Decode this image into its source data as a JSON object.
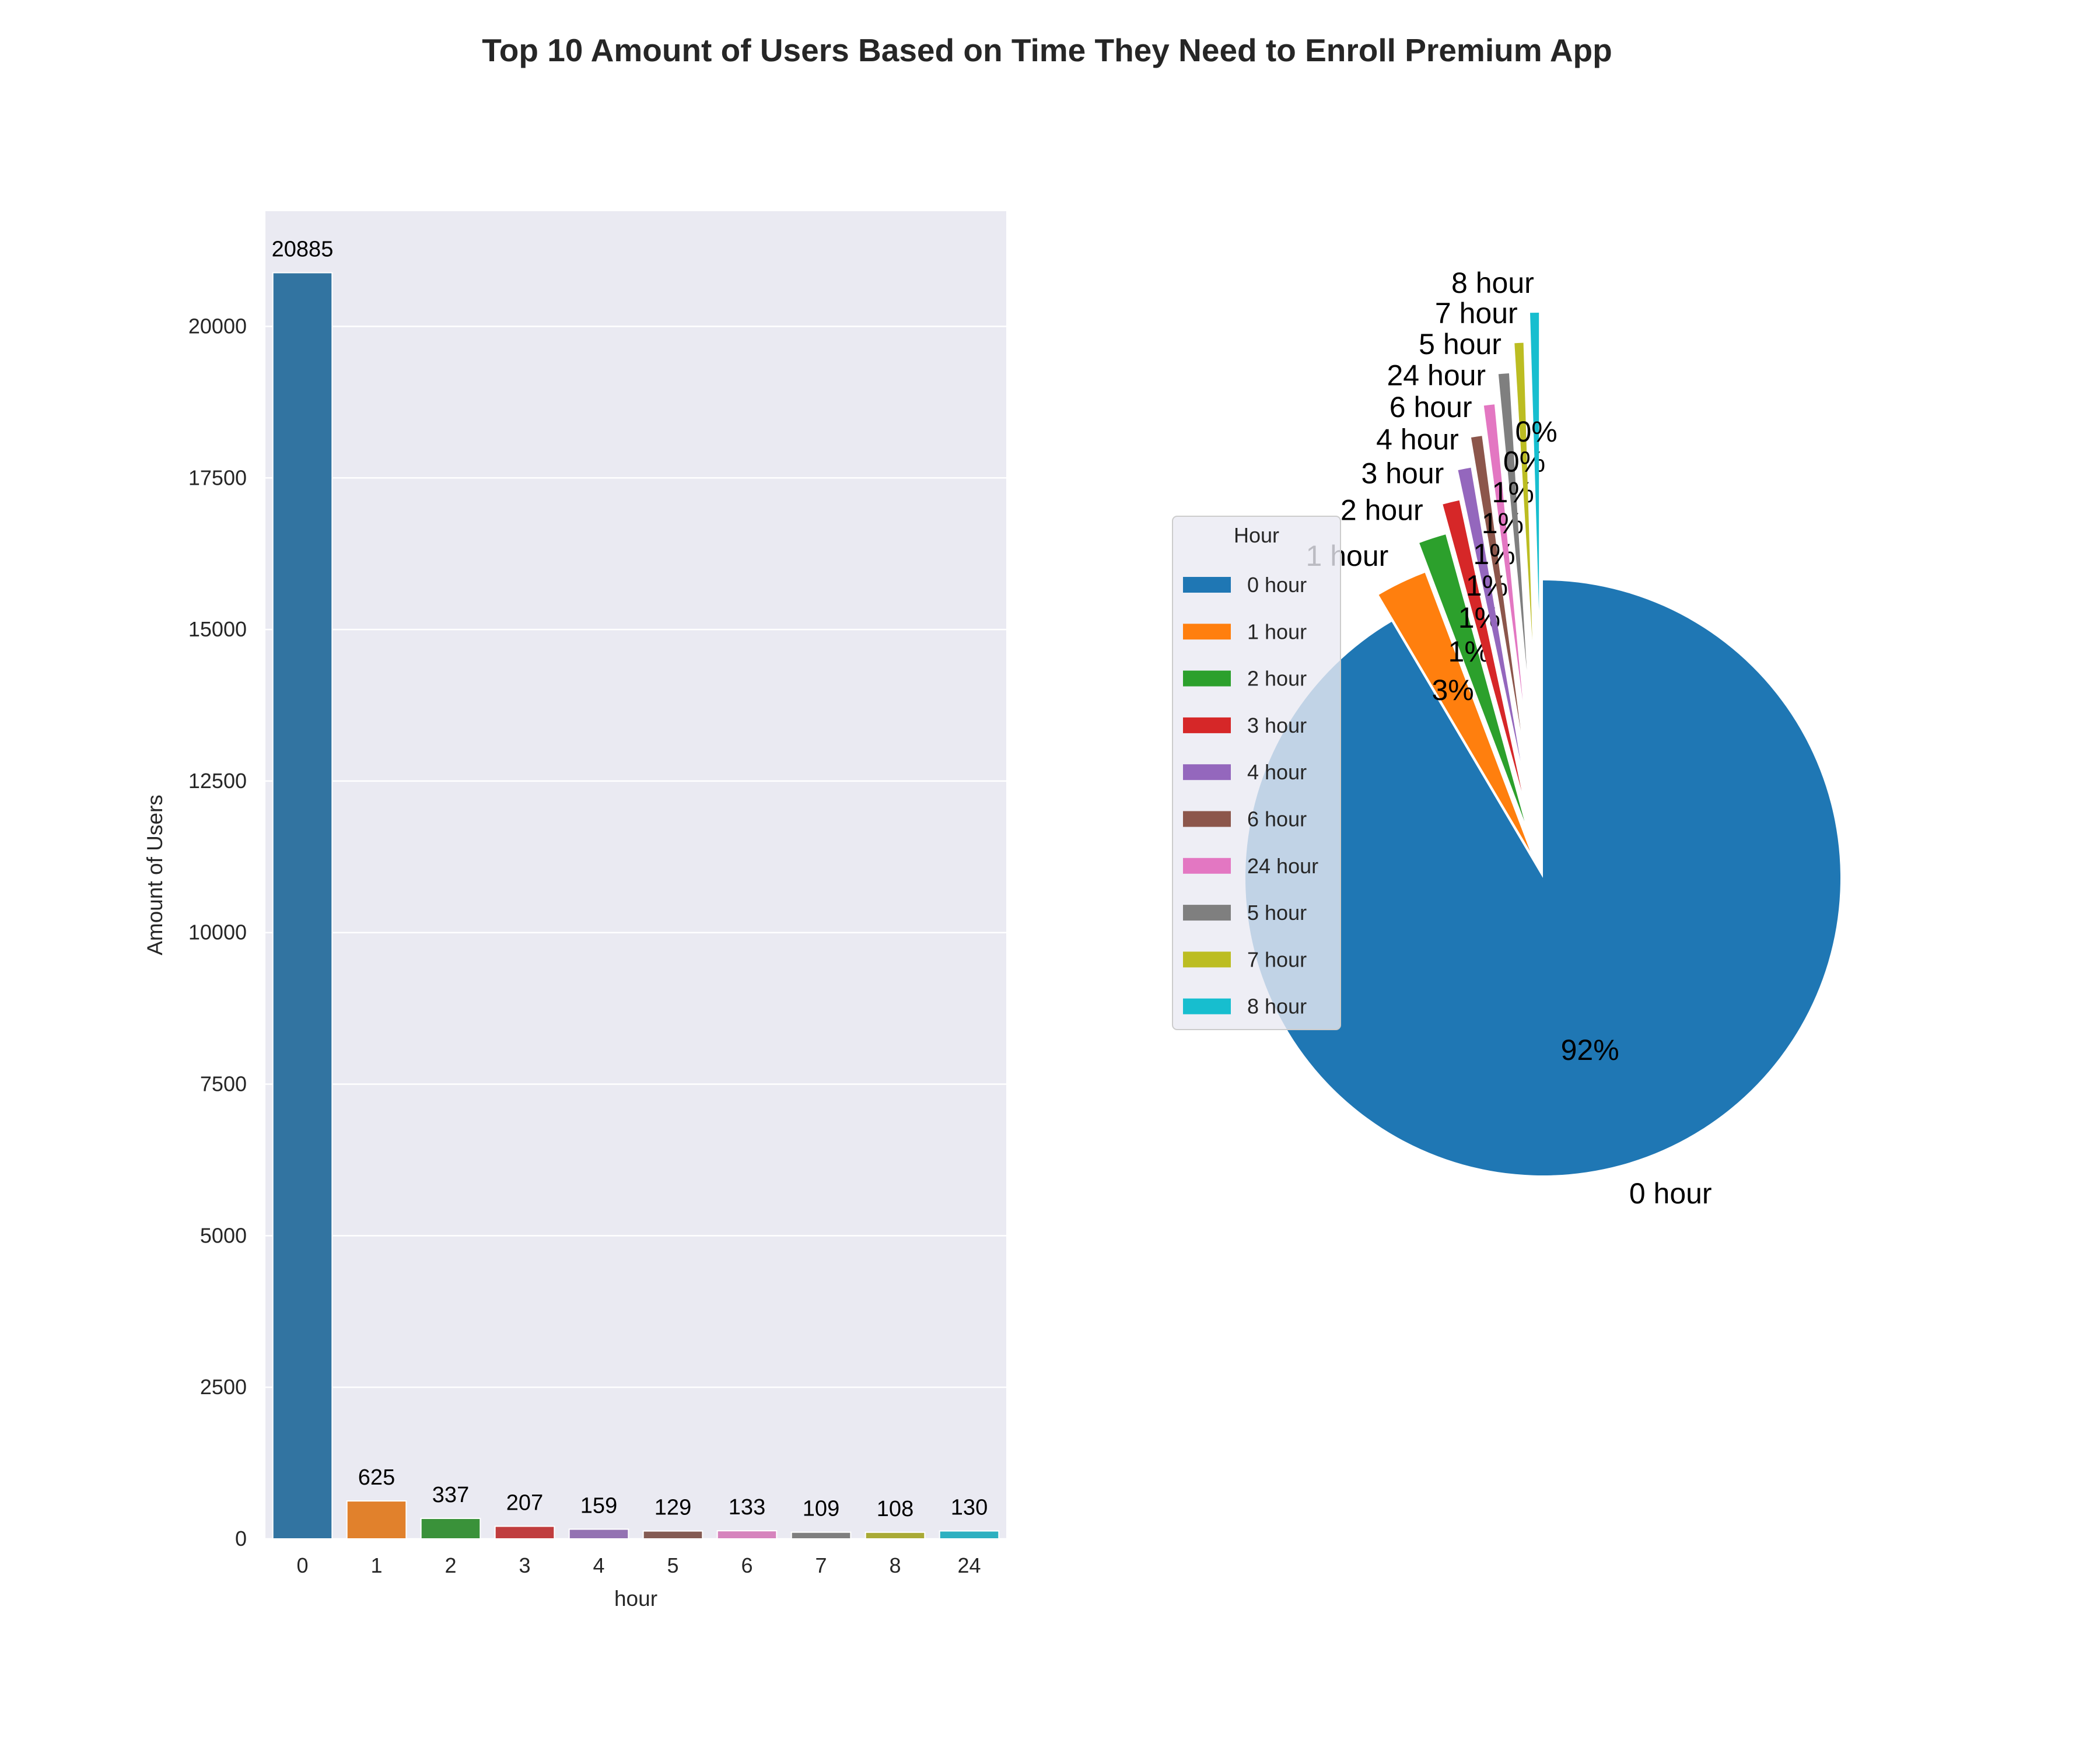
{
  "chart_data": {
    "title": "Top 10 Amount of Users Based on Time They Need to Enroll Premium App",
    "bar": {
      "type": "bar",
      "categories": [
        "0",
        "1",
        "2",
        "3",
        "4",
        "5",
        "6",
        "7",
        "8",
        "24"
      ],
      "values": [
        20885,
        625,
        337,
        207,
        159,
        129,
        133,
        109,
        108,
        130
      ],
      "data_labels": [
        "20885",
        "625",
        "337",
        "207",
        "159",
        "129",
        "133",
        "109",
        "108",
        "130"
      ],
      "xlabel": "hour",
      "ylabel": "Amount of Users",
      "ylim": [
        0,
        21900
      ],
      "yticks": [
        0,
        2500,
        5000,
        7500,
        10000,
        12500,
        15000,
        17500,
        20000
      ],
      "grid": true,
      "colors": [
        "#3274a1",
        "#e1812c",
        "#3a923a",
        "#c03d3e",
        "#9372b2",
        "#845b53",
        "#d684bd",
        "#7f7f7f",
        "#a9aa35",
        "#2eb0c0"
      ]
    },
    "pie": {
      "type": "pie",
      "labels": [
        "0 hour",
        "1 hour",
        "2 hour",
        "3 hour",
        "4 hour",
        "6 hour",
        "24 hour",
        "5 hour",
        "7 hour",
        "8 hour"
      ],
      "values": [
        20885,
        625,
        337,
        207,
        159,
        133,
        130,
        129,
        109,
        108
      ],
      "pct_labels": [
        "92%",
        "3%",
        "1%",
        "1%",
        "1%",
        "1%",
        "1%",
        "1%",
        "0%",
        "0%"
      ],
      "colors": [
        "#1f77b4",
        "#ff7f0e",
        "#2ca02c",
        "#d62728",
        "#9467bd",
        "#8c564b",
        "#e377c2",
        "#7f7f7f",
        "#bcbd22",
        "#17becf"
      ],
      "start_angle": 90,
      "counterclockwise": false,
      "legend": {
        "title": "Hour",
        "entries": [
          "0 hour",
          "1 hour",
          "2 hour",
          "3 hour",
          "4 hour",
          "6 hour",
          "24 hour",
          "5 hour",
          "7 hour",
          "8 hour"
        ],
        "placement": "left"
      }
    }
  }
}
